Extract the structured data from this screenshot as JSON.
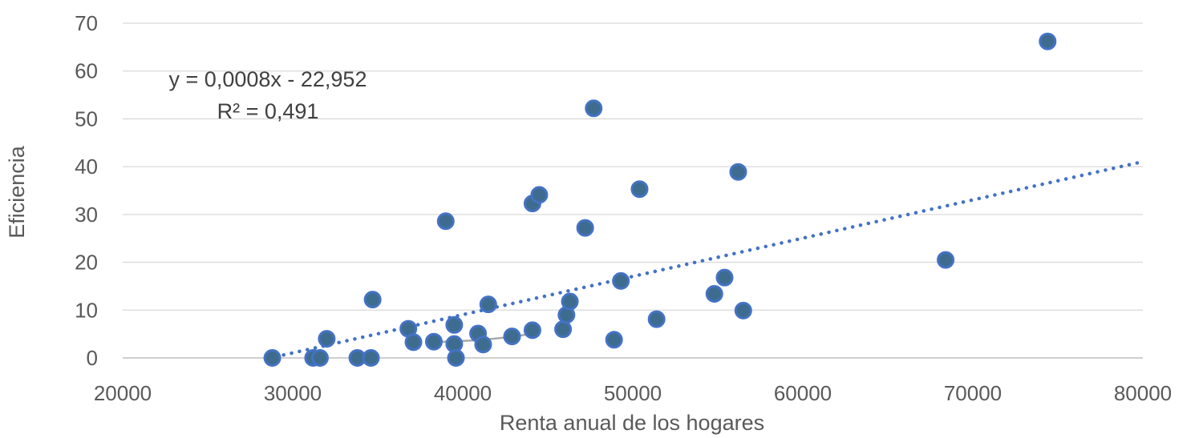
{
  "chart_data": {
    "type": "scatter",
    "xlabel": "Renta anual de los hogares",
    "ylabel": "Eficiencia",
    "xlim": [
      20000,
      80000
    ],
    "ylim": [
      0,
      70
    ],
    "x_ticks": [
      "20000",
      "30000",
      "40000",
      "50000",
      "60000",
      "70000",
      "80000"
    ],
    "y_ticks": [
      "0",
      "10",
      "20",
      "30",
      "40",
      "50",
      "60",
      "70"
    ],
    "grid": "horizontal",
    "trendline": {
      "type": "linear",
      "style": "dotted",
      "equation": "y = 0,0008x - 22,952",
      "r_squared": "R² = 0,491",
      "x_range": [
        29000,
        80000
      ]
    },
    "moving_average_segment": [
      [
        38300,
        3.3
      ],
      [
        40900,
        3.7
      ],
      [
        42900,
        4.4
      ],
      [
        44300,
        5.2
      ]
    ],
    "colors": {
      "marker_fill": "#3D6C8F",
      "marker_edge": "#4472C4",
      "trend": "#4472C4",
      "segment": "#A5A5A5",
      "grid": "#D9D9D9",
      "axis": "#BFBFBF"
    },
    "points": [
      {
        "x": 28800,
        "y": 0
      },
      {
        "x": 31200,
        "y": 0
      },
      {
        "x": 31600,
        "y": 0
      },
      {
        "x": 32000,
        "y": 4
      },
      {
        "x": 33800,
        "y": 0
      },
      {
        "x": 34600,
        "y": 0
      },
      {
        "x": 34700,
        "y": 12.2
      },
      {
        "x": 36800,
        "y": 6.1
      },
      {
        "x": 37100,
        "y": 3.3
      },
      {
        "x": 38300,
        "y": 3.4
      },
      {
        "x": 39000,
        "y": 28.6
      },
      {
        "x": 39500,
        "y": 6.9
      },
      {
        "x": 39500,
        "y": 2.9
      },
      {
        "x": 39600,
        "y": 0
      },
      {
        "x": 40900,
        "y": 5.1
      },
      {
        "x": 41200,
        "y": 2.8
      },
      {
        "x": 41500,
        "y": 11.2
      },
      {
        "x": 42900,
        "y": 4.5
      },
      {
        "x": 44100,
        "y": 5.8
      },
      {
        "x": 44100,
        "y": 32.3
      },
      {
        "x": 44500,
        "y": 34.1
      },
      {
        "x": 45900,
        "y": 6
      },
      {
        "x": 46100,
        "y": 9
      },
      {
        "x": 46300,
        "y": 11.8
      },
      {
        "x": 47200,
        "y": 27.2
      },
      {
        "x": 47700,
        "y": 52.2
      },
      {
        "x": 48900,
        "y": 3.8
      },
      {
        "x": 49300,
        "y": 16.1
      },
      {
        "x": 50400,
        "y": 35.3
      },
      {
        "x": 51400,
        "y": 8.1
      },
      {
        "x": 54800,
        "y": 13.4
      },
      {
        "x": 55400,
        "y": 16.8
      },
      {
        "x": 56200,
        "y": 38.9
      },
      {
        "x": 56500,
        "y": 9.9
      },
      {
        "x": 68400,
        "y": 20.5
      },
      {
        "x": 74400,
        "y": 66.2
      }
    ]
  }
}
